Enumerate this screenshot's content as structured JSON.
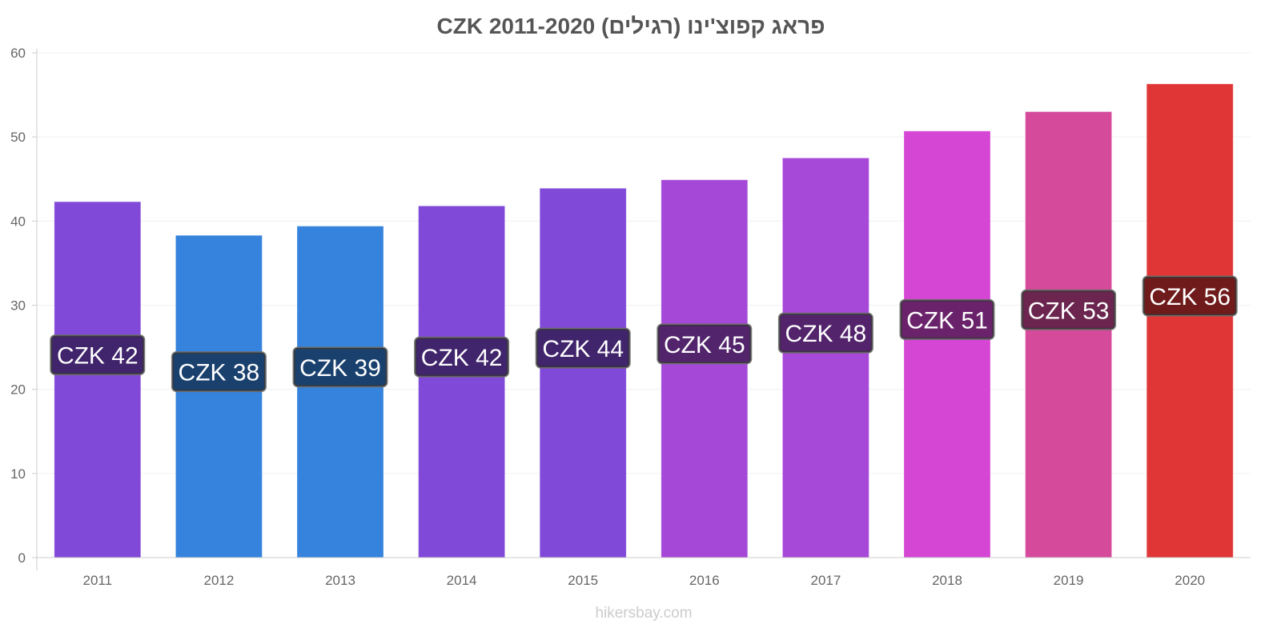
{
  "chart_data": {
    "type": "bar",
    "title": "פראג קפוצ'ינו (רגילים) CZK 2011-2020",
    "xlabel": "",
    "ylabel": "",
    "ylim": [
      0,
      60
    ],
    "yticks": [
      0,
      10,
      20,
      30,
      40,
      50,
      60
    ],
    "grid": true,
    "categories": [
      "2011",
      "2012",
      "2013",
      "2014",
      "2015",
      "2016",
      "2017",
      "2018",
      "2019",
      "2020"
    ],
    "values": [
      42.3,
      38.3,
      39.4,
      41.8,
      43.9,
      44.9,
      47.5,
      50.7,
      53.0,
      56.3
    ],
    "data_labels": [
      "CZK 42",
      "CZK 38",
      "CZK 39",
      "CZK 42",
      "CZK 44",
      "CZK 45",
      "CZK 48",
      "CZK 51",
      "CZK 53",
      "CZK 56"
    ],
    "colors": [
      "#8049d8",
      "#3583dd",
      "#3583dd",
      "#8049d8",
      "#8049d8",
      "#a548d8",
      "#a648d8",
      "#d546d4",
      "#d64a9c",
      "#e03636"
    ]
  },
  "watermark": "hikersbay.com"
}
